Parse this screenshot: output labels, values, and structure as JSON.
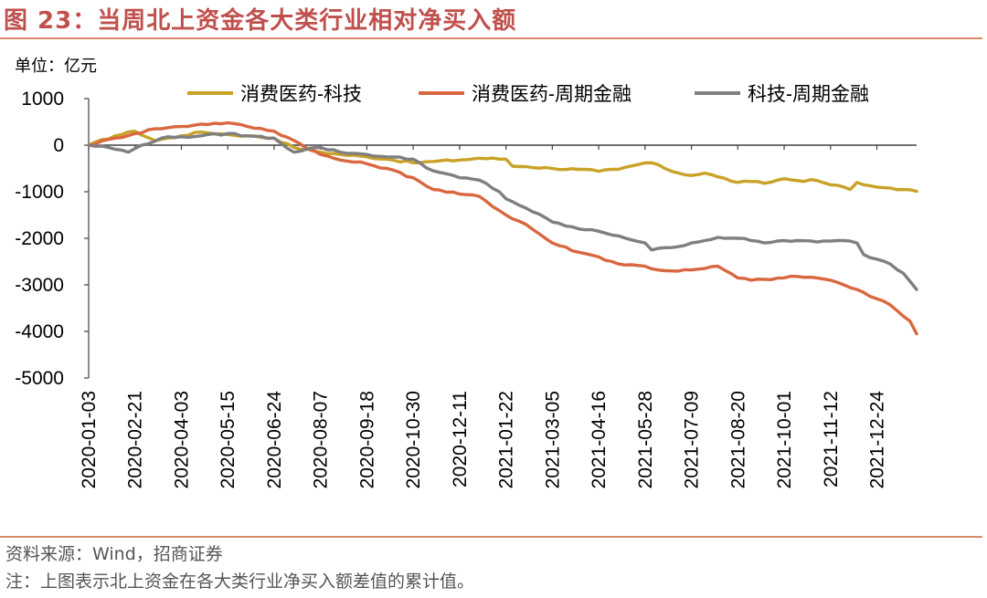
{
  "figure": {
    "title": "图 23：当周北上资金各大类行业相对净买入额",
    "unit_label": "单位：亿元",
    "source": "资料来源：Wind，招商证券",
    "note": "注：上图表示北上资金在各大类行业净买入额差值的累计值。"
  },
  "colors": {
    "title": "#c0504d",
    "rule": "#d98a66",
    "series_1": "#c9a227",
    "series_2": "#d9673f",
    "series_3": "#7f7f7f",
    "axis": "#404040"
  },
  "chart_data": {
    "type": "line",
    "title": "当周北上资金各大类行业相对净买入额",
    "xlabel": "",
    "ylabel": "单位：亿元",
    "ylim": [
      -5000,
      1000
    ],
    "yticks": [
      1000,
      0,
      -1000,
      -2000,
      -3000,
      -4000,
      -5000
    ],
    "ytick_labels": [
      "1000",
      "0",
      "-1000",
      "-2000",
      "-3000",
      "-4000",
      "-5000"
    ],
    "legend_position": "top",
    "x_tick_labels": [
      "2020-01-03",
      "2020-02-21",
      "2020-04-03",
      "2020-05-15",
      "2020-06-24",
      "2020-08-07",
      "2020-09-18",
      "2020-10-30",
      "2020-12-11",
      "2021-01-22",
      "2021-03-05",
      "2021-04-16",
      "2021-05-28",
      "2021-07-09",
      "2021-08-20",
      "2021-10-01",
      "2021-11-12",
      "2021-12-24"
    ],
    "x_tick_positions": [
      0,
      7,
      14,
      21,
      28,
      35,
      42,
      49,
      56,
      63,
      70,
      77,
      84,
      91,
      98,
      105,
      112,
      119
    ],
    "n_points": 126,
    "series": [
      {
        "name": "消费医药-科技",
        "color": "#c9a227",
        "keypoints": [
          [
            0,
            0
          ],
          [
            4,
            200
          ],
          [
            7,
            300
          ],
          [
            10,
            100
          ],
          [
            14,
            200
          ],
          [
            17,
            280
          ],
          [
            21,
            230
          ],
          [
            24,
            200
          ],
          [
            28,
            150
          ],
          [
            31,
            -50
          ],
          [
            35,
            -150
          ],
          [
            38,
            -200
          ],
          [
            42,
            -250
          ],
          [
            45,
            -300
          ],
          [
            49,
            -380
          ],
          [
            52,
            -350
          ],
          [
            56,
            -320
          ],
          [
            59,
            -280
          ],
          [
            63,
            -300
          ],
          [
            64,
            -450
          ],
          [
            66,
            -460
          ],
          [
            70,
            -500
          ],
          [
            74,
            -520
          ],
          [
            77,
            -560
          ],
          [
            80,
            -520
          ],
          [
            84,
            -380
          ],
          [
            86,
            -420
          ],
          [
            88,
            -560
          ],
          [
            91,
            -650
          ],
          [
            93,
            -600
          ],
          [
            95,
            -680
          ],
          [
            98,
            -800
          ],
          [
            100,
            -780
          ],
          [
            102,
            -820
          ],
          [
            105,
            -720
          ],
          [
            107,
            -760
          ],
          [
            110,
            -760
          ],
          [
            112,
            -850
          ],
          [
            114,
            -900
          ],
          [
            115,
            -950
          ],
          [
            116,
            -800
          ],
          [
            117,
            -850
          ],
          [
            119,
            -900
          ],
          [
            121,
            -920
          ],
          [
            123,
            -950
          ],
          [
            125,
            -990
          ]
        ]
      },
      {
        "name": "消费医药-周期金融",
        "color": "#d9673f",
        "keypoints": [
          [
            0,
            0
          ],
          [
            4,
            150
          ],
          [
            7,
            250
          ],
          [
            10,
            350
          ],
          [
            14,
            400
          ],
          [
            17,
            450
          ],
          [
            21,
            480
          ],
          [
            24,
            400
          ],
          [
            28,
            300
          ],
          [
            31,
            100
          ],
          [
            35,
            -200
          ],
          [
            38,
            -320
          ],
          [
            42,
            -400
          ],
          [
            45,
            -500
          ],
          [
            49,
            -700
          ],
          [
            52,
            -950
          ],
          [
            56,
            -1050
          ],
          [
            59,
            -1100
          ],
          [
            63,
            -1500
          ],
          [
            66,
            -1700
          ],
          [
            70,
            -2100
          ],
          [
            74,
            -2300
          ],
          [
            77,
            -2400
          ],
          [
            80,
            -2550
          ],
          [
            84,
            -2600
          ],
          [
            86,
            -2680
          ],
          [
            88,
            -2700
          ],
          [
            91,
            -2680
          ],
          [
            93,
            -2650
          ],
          [
            95,
            -2600
          ],
          [
            98,
            -2850
          ],
          [
            100,
            -2900
          ],
          [
            102,
            -2880
          ],
          [
            105,
            -2850
          ],
          [
            107,
            -2820
          ],
          [
            110,
            -2850
          ],
          [
            112,
            -2900
          ],
          [
            114,
            -3000
          ],
          [
            116,
            -3100
          ],
          [
            118,
            -3250
          ],
          [
            120,
            -3350
          ],
          [
            122,
            -3550
          ],
          [
            124,
            -3780
          ],
          [
            125,
            -4050
          ]
        ]
      },
      {
        "name": "科技-周期金融",
        "color": "#7f7f7f",
        "keypoints": [
          [
            0,
            0
          ],
          [
            3,
            -50
          ],
          [
            6,
            -150
          ],
          [
            8,
            0
          ],
          [
            11,
            150
          ],
          [
            14,
            180
          ],
          [
            17,
            200
          ],
          [
            21,
            250
          ],
          [
            24,
            200
          ],
          [
            28,
            150
          ],
          [
            31,
            -150
          ],
          [
            33,
            -80
          ],
          [
            35,
            -50
          ],
          [
            38,
            -150
          ],
          [
            42,
            -200
          ],
          [
            45,
            -250
          ],
          [
            49,
            -300
          ],
          [
            52,
            -550
          ],
          [
            56,
            -700
          ],
          [
            59,
            -750
          ],
          [
            62,
            -1000
          ],
          [
            63,
            -1150
          ],
          [
            66,
            -1350
          ],
          [
            70,
            -1650
          ],
          [
            74,
            -1800
          ],
          [
            77,
            -1850
          ],
          [
            80,
            -1950
          ],
          [
            84,
            -2100
          ],
          [
            85,
            -2250
          ],
          [
            88,
            -2200
          ],
          [
            91,
            -2100
          ],
          [
            93,
            -2050
          ],
          [
            95,
            -1980
          ],
          [
            98,
            -2000
          ],
          [
            100,
            -2050
          ],
          [
            102,
            -2100
          ],
          [
            105,
            -2050
          ],
          [
            107,
            -2050
          ],
          [
            110,
            -2080
          ],
          [
            112,
            -2060
          ],
          [
            114,
            -2050
          ],
          [
            116,
            -2100
          ],
          [
            117,
            -2350
          ],
          [
            119,
            -2450
          ],
          [
            121,
            -2550
          ],
          [
            123,
            -2750
          ],
          [
            125,
            -3100
          ]
        ]
      }
    ]
  }
}
